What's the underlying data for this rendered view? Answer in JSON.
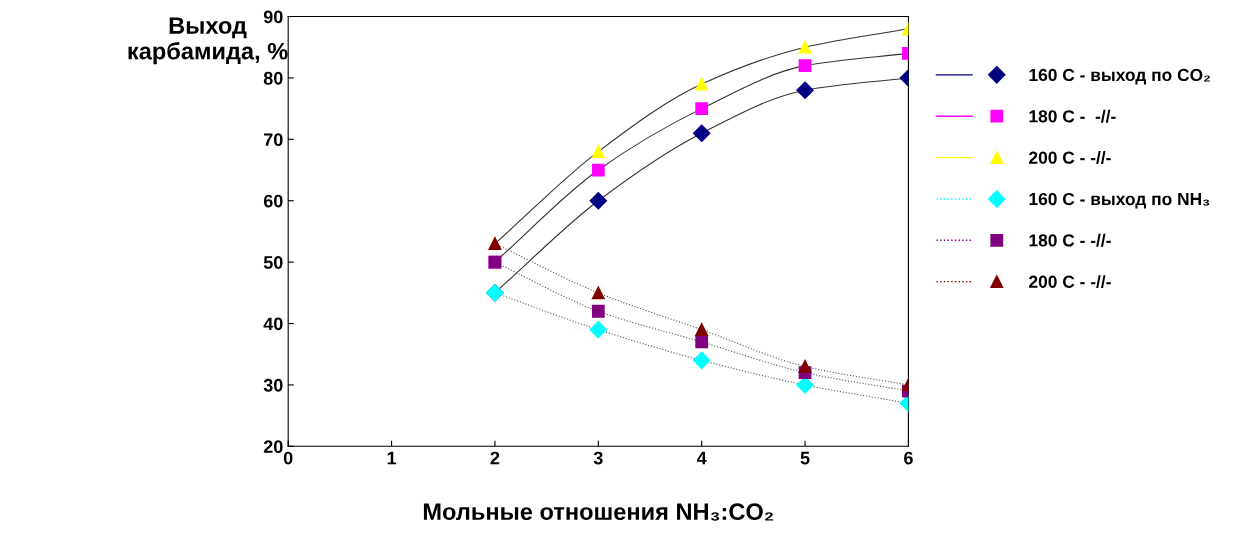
{
  "chart_data": {
    "type": "line",
    "xlabel": "Мольные отношения NH₃:CO₂",
    "ylabel": "Выход\nкарбамида, %",
    "x": [
      2,
      3,
      4,
      5,
      6
    ],
    "xlim": [
      0,
      6
    ],
    "xticks": [
      0,
      1,
      2,
      3,
      4,
      5,
      6
    ],
    "ylim": [
      20,
      90
    ],
    "yticks": [
      20,
      30,
      40,
      50,
      60,
      70,
      80,
      90
    ],
    "grid": false,
    "legend": "right",
    "series": [
      {
        "name": "160 C - выход по CO₂",
        "color": "#000080",
        "values": [
          45,
          60,
          71,
          78,
          80
        ],
        "marker": "diamond",
        "line_style": "solid"
      },
      {
        "name": "180 C -  -//-",
        "color": "#ff00ff",
        "values": [
          50,
          65,
          75,
          82,
          84
        ],
        "marker": "square",
        "line_style": "solid"
      },
      {
        "name": "200 C - -//-",
        "color": "#ffff00",
        "values": [
          53,
          68,
          79,
          85,
          88
        ],
        "marker": "triangle",
        "line_style": "solid"
      },
      {
        "name": "160 C - выход по NH₃",
        "color": "#00ffff",
        "values": [
          45,
          39,
          34,
          30,
          27
        ],
        "marker": "diamond",
        "line_style": "dotted"
      },
      {
        "name": "180 C - -//-",
        "color": "#800080",
        "values": [
          50,
          42,
          37,
          32,
          29
        ],
        "marker": "square",
        "line_style": "dotted"
      },
      {
        "name": "200 C - -//-",
        "color": "#800000",
        "values": [
          53,
          45,
          39,
          33,
          30
        ],
        "marker": "triangle",
        "line_style": "dotted"
      }
    ]
  }
}
